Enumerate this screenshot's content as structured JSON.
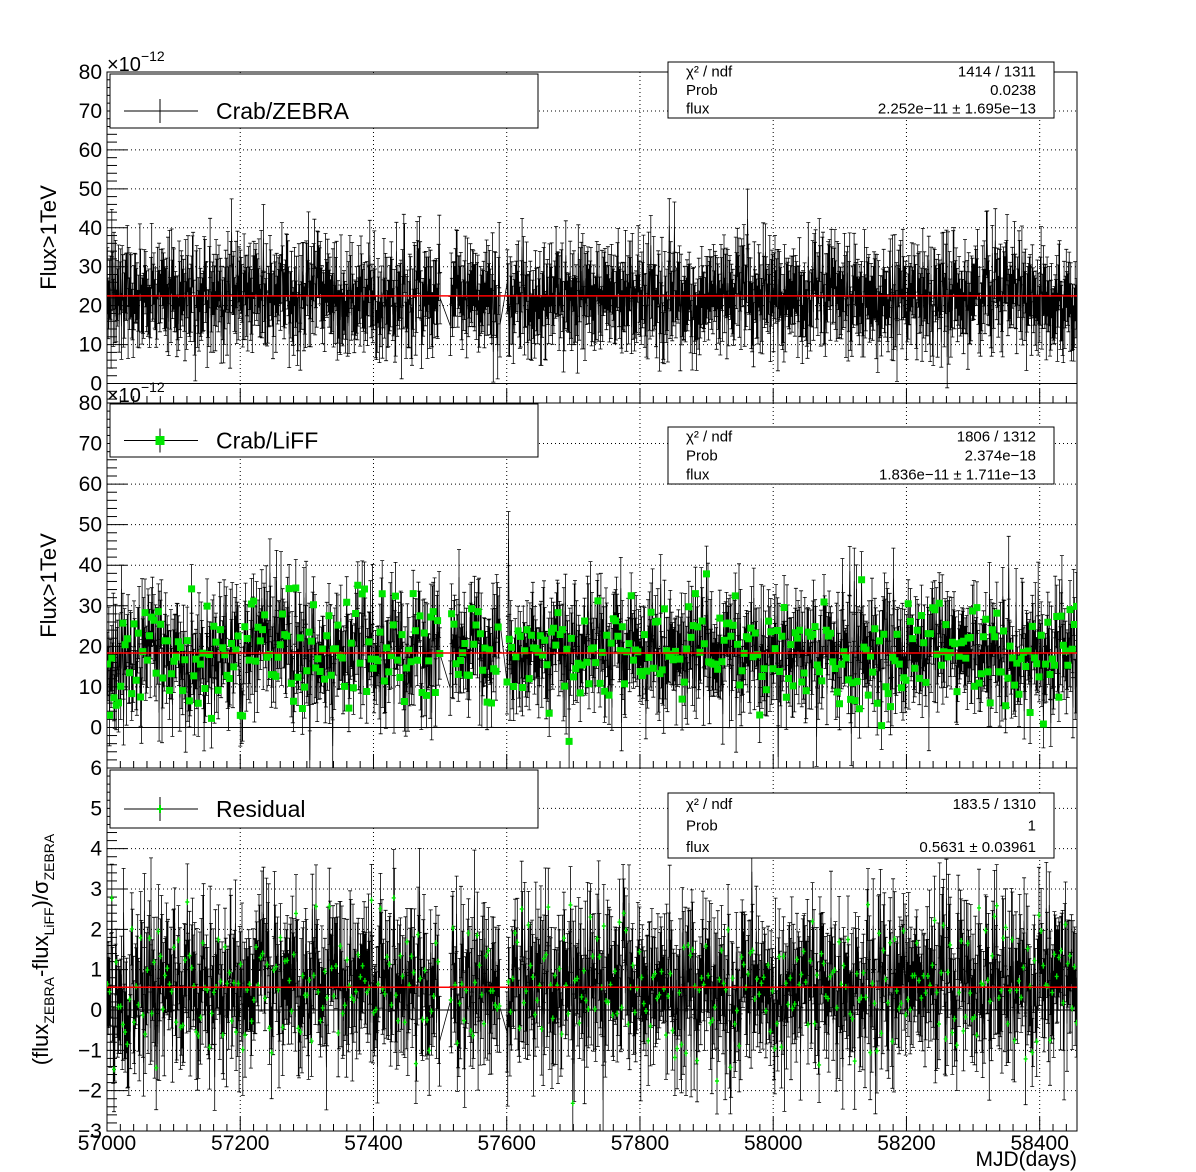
{
  "chart_data": [
    {
      "type": "scatter",
      "x_range": [
        57000,
        58456
      ],
      "ylim": [
        -5,
        80
      ],
      "y_multiplier": "×10",
      "y_multiplier_exponent": "−12",
      "ylabel": "Flux>1TeV",
      "xlabel": "",
      "grid": true,
      "y_ticks": [
        0,
        10,
        20,
        30,
        40,
        50,
        60,
        70,
        80
      ],
      "y_tick_labels": [
        "0",
        "10",
        "20",
        "30",
        "40",
        "50",
        "60",
        "70",
        "80"
      ],
      "x_ticks": [
        57000,
        57200,
        57400,
        57600,
        57800,
        58000,
        58200,
        58400
      ],
      "legend": {
        "position": "top-left",
        "label": "Crab/ZEBRA",
        "marker": "cross",
        "color": "#000000"
      },
      "stats": [
        {
          "label": "χ² / ndf",
          "value": "1414 / 1311"
        },
        {
          "label": "Prob",
          "value": "0.0238"
        },
        {
          "label": "flux",
          "value": "2.252e−11 ± 1.695e−13"
        }
      ],
      "fit": {
        "constant": 22.5,
        "color": "#ff0000"
      },
      "series": [
        {
          "n_points": 1312,
          "mean": 22.5,
          "spread": 5.2,
          "error": 7.5,
          "gaps": [
            [
              57500,
              57515
            ],
            [
              57590,
              57600
            ]
          ],
          "color": "#000000",
          "marker": "none"
        }
      ]
    },
    {
      "type": "scatter",
      "x_range": [
        57000,
        58456
      ],
      "ylim": [
        -10,
        80
      ],
      "y_multiplier": "×10",
      "y_multiplier_exponent": "−12",
      "ylabel": "Flux>1TeV",
      "xlabel": "",
      "grid": true,
      "y_ticks": [
        0,
        10,
        20,
        30,
        40,
        50,
        60,
        70,
        80
      ],
      "y_tick_labels": [
        "0",
        "10",
        "20",
        "30",
        "40",
        "50",
        "60",
        "70",
        "80"
      ],
      "x_ticks": [
        57000,
        57200,
        57400,
        57600,
        57800,
        58000,
        58200,
        58400
      ],
      "legend": {
        "position": "top-left",
        "label": "Crab/LiFF",
        "marker": "square",
        "color": "#00e600"
      },
      "stats": [
        {
          "label": "χ² / ndf",
          "value": "1806 / 1312"
        },
        {
          "label": "Prob",
          "value": "2.374e−18"
        },
        {
          "label": "flux",
          "value": "1.836e−11 ± 1.711e−13"
        }
      ],
      "fit": {
        "constant": 18.36,
        "color": "#ff0000"
      },
      "series": [
        {
          "n_points": 1313,
          "mean": 18.4,
          "spread": 7.0,
          "error": 7.0,
          "gaps": [
            [
              57500,
              57515
            ],
            [
              57590,
              57600
            ]
          ],
          "color": "#00e600",
          "marker": "square"
        }
      ]
    },
    {
      "type": "scatter",
      "x_range": [
        57000,
        58456
      ],
      "ylim": [
        -3,
        6
      ],
      "ylabel": "(flux_ZEBRA-flux_LiFF)/σ_ZEBRA",
      "ylabel_parts": [
        "(flux",
        "ZEBRA",
        "-flux",
        "LiFF",
        ")/σ",
        "ZEBRA"
      ],
      "xlabel": "MJD(days)",
      "grid": true,
      "y_ticks": [
        -3,
        -2,
        -1,
        0,
        1,
        2,
        3,
        4,
        5,
        6
      ],
      "y_tick_labels": [
        "−3",
        "−2",
        "−1",
        "0",
        "1",
        "2",
        "3",
        "4",
        "5",
        "6"
      ],
      "x_ticks": [
        57000,
        57200,
        57400,
        57600,
        57800,
        58000,
        58200,
        58400
      ],
      "x_tick_labels": [
        "57000",
        "57200",
        "57400",
        "57600",
        "57800",
        "58000",
        "58200",
        "58400"
      ],
      "legend": {
        "position": "top-left",
        "label": "Residual",
        "marker": "star",
        "color": "#00e600"
      },
      "stats": [
        {
          "label": "χ² / ndf",
          "value": "183.5 / 1310"
        },
        {
          "label": "Prob",
          "value": "1"
        },
        {
          "label": "flux",
          "value": "0.5631 ± 0.03961"
        }
      ],
      "fit": {
        "constant": 0.5631,
        "color": "#ff0000"
      },
      "series": [
        {
          "n_points": 1311,
          "mean": 0.56,
          "spread": 0.85,
          "error": 1.0,
          "gaps": [
            [
              57500,
              57515
            ],
            [
              57590,
              57600
            ]
          ],
          "color": "#00e600",
          "marker": "star"
        }
      ]
    }
  ]
}
